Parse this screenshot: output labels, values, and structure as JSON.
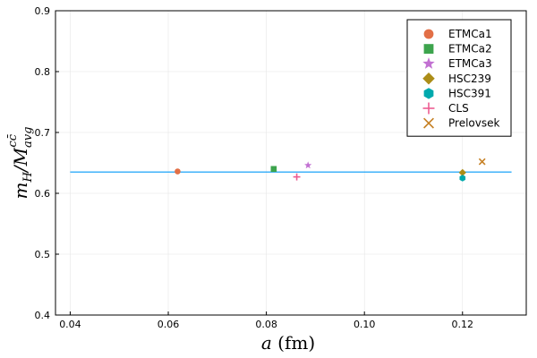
{
  "chart_data": {
    "type": "scatter",
    "title": "",
    "xlabel": "a (fm)",
    "ylabel": "m_H / M_avg^{cc̄}",
    "xlim": [
      0.037,
      0.133
    ],
    "ylim": [
      0.4,
      0.9
    ],
    "x_ticks": [
      "0.04",
      "0.06",
      "0.08",
      "0.10",
      "0.12"
    ],
    "x_tick_values": [
      0.04,
      0.06,
      0.08,
      0.1,
      0.12
    ],
    "y_ticks": [
      "0.4",
      "0.5",
      "0.6",
      "0.7",
      "0.8",
      "0.9"
    ],
    "y_tick_values": [
      0.4,
      0.5,
      0.6,
      0.7,
      0.8,
      0.9
    ],
    "grid": true,
    "legend_position": "top-right",
    "series": [
      {
        "name": "ETMCa1",
        "marker": "circle",
        "color": "#e26f46",
        "x": [
          0.0619
        ],
        "y": [
          0.636
        ]
      },
      {
        "name": "ETMCa2",
        "marker": "square",
        "color": "#3da44d",
        "x": [
          0.0815
        ],
        "y": [
          0.64
        ]
      },
      {
        "name": "ETMCa3",
        "marker": "star",
        "color": "#c271d2",
        "x": [
          0.0885
        ],
        "y": [
          0.646
        ]
      },
      {
        "name": "HSC239",
        "marker": "diamond",
        "color": "#ac8d18",
        "x": [
          0.12
        ],
        "y": [
          0.634
        ]
      },
      {
        "name": "HSC391",
        "marker": "hexagon",
        "color": "#00a9ad",
        "x": [
          0.12
        ],
        "y": [
          0.625
        ]
      },
      {
        "name": "CLS",
        "marker": "plus",
        "color": "#ed5d92",
        "x": [
          0.0862
        ],
        "y": [
          0.627
        ]
      },
      {
        "name": "Prelovsek",
        "marker": "cross",
        "color": "#c68125",
        "x": [
          0.124
        ],
        "y": [
          0.652
        ]
      }
    ],
    "reference_line": {
      "color": "#009af9",
      "x": [
        0.04,
        0.13
      ],
      "y": [
        0.635,
        0.635
      ]
    }
  }
}
